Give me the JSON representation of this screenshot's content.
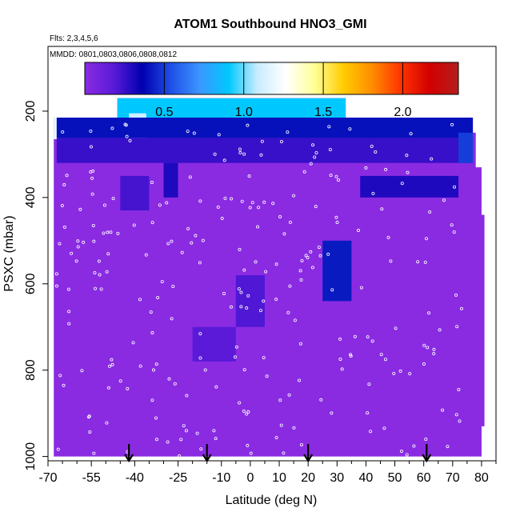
{
  "chart_data": {
    "type": "heatmap",
    "title": "ATOM1 Southbound HNO3_GMI",
    "note_flights": "Flts: 2,3,4,5,6",
    "note_dates": "MMDD: 0801,0803,0806,0808,0812",
    "xlabel": "Latitude (deg N)",
    "ylabel": "PSXC (mbar)",
    "xlim": [
      -70,
      85
    ],
    "ylim": [
      1010,
      50
    ],
    "x_ticks": [
      -70,
      -55,
      -40,
      -25,
      -10,
      0,
      10,
      20,
      30,
      40,
      50,
      60,
      70,
      80
    ],
    "x_tick_labels": [
      "-70",
      "-55",
      "-40",
      "-25",
      "-10",
      "0",
      "10",
      "20",
      "30",
      "40",
      "50",
      "60",
      "70",
      "80"
    ],
    "x_minor_ticks": [
      -65,
      -60,
      -50,
      -45,
      -35,
      -30,
      -20,
      -15,
      -5,
      5,
      15,
      25,
      35,
      45,
      55,
      65,
      75,
      85
    ],
    "y_ticks": [
      200,
      400,
      600,
      800,
      1000
    ],
    "y_tick_labels": [
      "200",
      "400",
      "600",
      "800",
      "1000"
    ],
    "colorbar": {
      "range": [
        0,
        2.35
      ],
      "ticks": [
        0.5,
        1.0,
        1.5,
        2.0
      ],
      "tick_labels": [
        "0.5",
        "1.0",
        "1.5",
        "2.0"
      ],
      "colors": [
        "#8a2be2",
        "#5a1ad8",
        "#0000b0",
        "#1e50e6",
        "#3c96ff",
        "#00c8ff",
        "#c8ecff",
        "#ffffff",
        "#ffff96",
        "#ffcc00",
        "#ff8c00",
        "#ff3200",
        "#d20000",
        "#b41e1e"
      ]
    },
    "background_color": "#8a2be2",
    "arrow_latitudes": [
      -42,
      -15,
      20,
      61
    ],
    "high_regions": [
      {
        "lat": [
          -46,
          33
        ],
        "p": [
          170,
          215
        ],
        "value": 0.9
      },
      {
        "lat": [
          -42,
          -36
        ],
        "p": [
          205,
          265
        ],
        "value": 1.1
      },
      {
        "lat": [
          -68,
          -66
        ],
        "p": [
          215,
          265
        ],
        "value": 1.2
      },
      {
        "lat": [
          -67,
          77
        ],
        "p": [
          215,
          262
        ],
        "value": 0.4
      },
      {
        "lat": [
          -67,
          77
        ],
        "p": [
          262,
          320
        ],
        "value": 0.25
      },
      {
        "lat": [
          72,
          77
        ],
        "p": [
          250,
          320
        ],
        "value": 0.5
      },
      {
        "lat": [
          -30,
          -25
        ],
        "p": [
          320,
          400
        ],
        "value": 0.3
      },
      {
        "lat": [
          -45,
          -35
        ],
        "p": [
          350,
          430
        ],
        "value": 0.22
      },
      {
        "lat": [
          25,
          35
        ],
        "p": [
          500,
          640
        ],
        "value": 0.42
      },
      {
        "lat": [
          38,
          72
        ],
        "p": [
          350,
          400
        ],
        "value": 0.3
      },
      {
        "lat": [
          -5,
          5
        ],
        "p": [
          580,
          700
        ],
        "value": 0.2
      },
      {
        "lat": [
          -20,
          -5
        ],
        "p": [
          700,
          780
        ],
        "value": 0.18
      }
    ]
  }
}
